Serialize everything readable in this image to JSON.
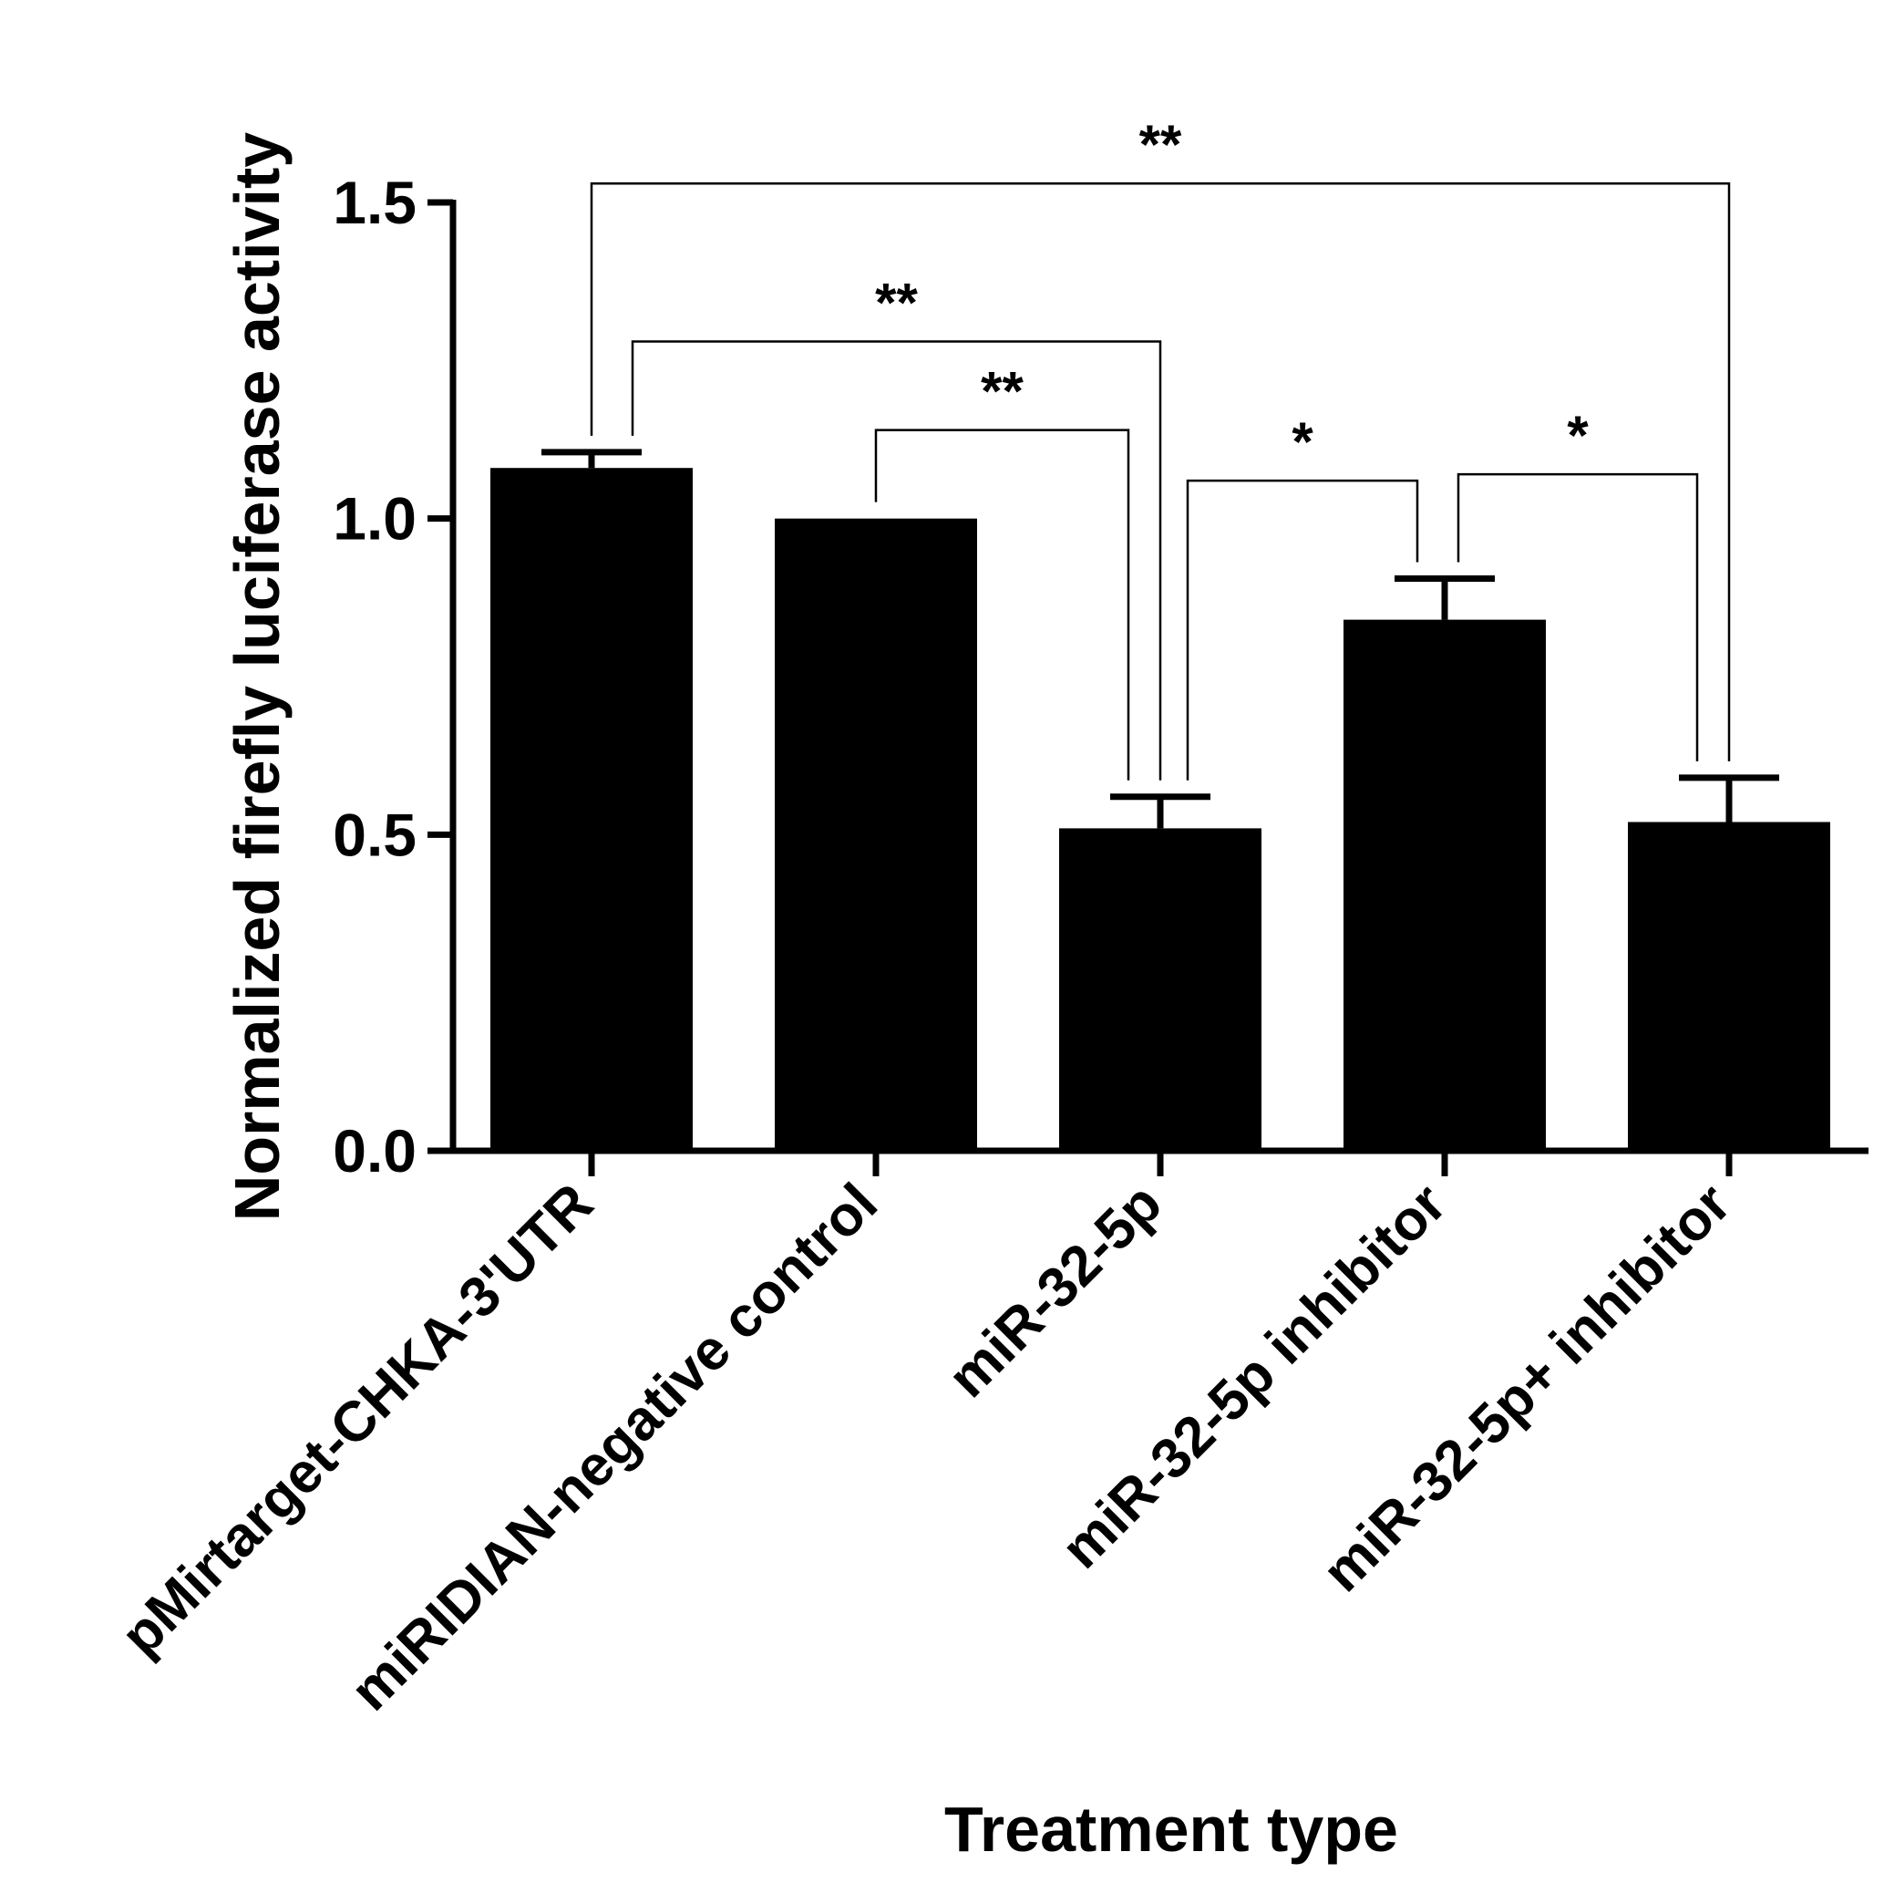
{
  "chart_data": {
    "type": "bar",
    "title": "",
    "xlabel": "Treatment type",
    "ylabel": "Normalized firefly luciferase activity",
    "ylim": [
      0,
      1.5
    ],
    "yticks": [
      0.0,
      0.5,
      1.0,
      1.5
    ],
    "ytick_labels": [
      "0.0",
      "0.5",
      "1.0",
      "1.5"
    ],
    "categories": [
      "pMirtarget-CHKA-3'UTR",
      "miRIDIAN-negative control",
      "miR-32-5p",
      "miR-32-5p inhibitor",
      "miR-32-5p+ inhibitor"
    ],
    "values": [
      1.08,
      1.0,
      0.51,
      0.84,
      0.52
    ],
    "errors": [
      0.025,
      0.0,
      0.05,
      0.065,
      0.07
    ],
    "bar_color": "#000000",
    "grid": false,
    "legend": "none",
    "significance": [
      {
        "from": 0,
        "to": 4,
        "label": "**",
        "y": 1.53
      },
      {
        "from": 0,
        "to": 2,
        "label": "**",
        "y": 1.28
      },
      {
        "from": 1,
        "to": 2,
        "label": "**",
        "y": 1.14
      },
      {
        "from": 2,
        "to": 3,
        "label": "*",
        "y": 1.06
      },
      {
        "from": 3,
        "to": 4,
        "label": "*",
        "y": 1.07
      }
    ]
  }
}
